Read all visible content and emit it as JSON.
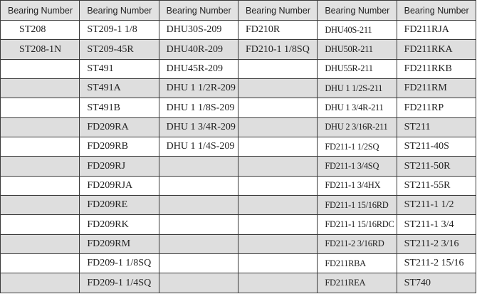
{
  "table": {
    "headers": [
      "Bearing Number",
      "Bearing Number",
      "Bearing Number",
      "Bearing Number",
      "Bearing Number",
      "Bearing Number"
    ],
    "rows": [
      [
        "ST208",
        "ST209-1 1/8",
        "DHU30S-209",
        "FD210R",
        "DHU40S-211",
        "FD211RJA"
      ],
      [
        "ST208-1N",
        "ST209-45R",
        "DHU40R-209",
        "FD210-1 1/8SQ",
        "DHU50R-211",
        "FD211RKA"
      ],
      [
        "",
        "ST491",
        "DHU45R-209",
        "",
        "DHU55R-211",
        "FD211RKB"
      ],
      [
        "",
        "ST491A",
        "DHU 1 1/2R-209",
        "",
        "DHU 1 1/2S-211",
        "FD211RM"
      ],
      [
        "",
        "ST491B",
        "DHU 1 1/8S-209",
        "",
        "DHU 1 3/4R-211",
        "FD211RP"
      ],
      [
        "",
        "FD209RA",
        "DHU 1 3/4R-209",
        "",
        "DHU 2 3/16R-211",
        "ST211"
      ],
      [
        "",
        "FD209RB",
        "DHU 1 1/4S-209",
        "",
        "FD211-1 1/2SQ",
        "ST211-40S"
      ],
      [
        "",
        "FD209RJ",
        "",
        "",
        "FD211-1 3/4SQ",
        "ST211-50R"
      ],
      [
        "",
        "FD209RJA",
        "",
        "",
        "FD211-1 3/4HX",
        "ST211-55R"
      ],
      [
        "",
        "FD209RE",
        "",
        "",
        "FD211-1 15/16RD",
        "ST211-1 1/2"
      ],
      [
        "",
        "FD209RK",
        "",
        "",
        "FD211-1 15/16RDC",
        "ST211-1 3/4"
      ],
      [
        "",
        "FD209RM",
        "",
        "",
        "FD211-2 3/16RD",
        "ST211-2 3/16"
      ],
      [
        "",
        "FD209-1 1/8SQ",
        "",
        "",
        "FD211RBA",
        "ST211-2 15/16"
      ],
      [
        "",
        "FD209-1 1/4SQ",
        "",
        "",
        "FD211REA",
        "ST740"
      ]
    ]
  },
  "colors": {
    "header_bg": "#e2e2e2",
    "alt_row_bg": "#dedede",
    "border": "#3a3a3a"
  }
}
